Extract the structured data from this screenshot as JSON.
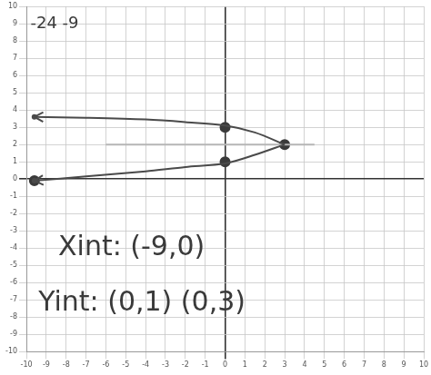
{
  "chart_data": {
    "type": "scatter",
    "annotations": [
      "-24 -9",
      "Xint: (-9,0)",
      "Yint: (0,1) (0,3)"
    ],
    "series": [
      {
        "color": "#4a4a4a",
        "marker": "arrow",
        "line_style": "solid",
        "x": [
          -9.6,
          -7,
          -4,
          -2,
          0,
          1.5,
          3
        ],
        "values": [
          3.6,
          3.55,
          3.45,
          3.3,
          3.1,
          2.7,
          2.0
        ]
      },
      {
        "color": "#4a4a4a",
        "marker": "arrow",
        "line_style": "solid",
        "x": [
          -9.6,
          -7,
          -4,
          -2,
          0,
          1.5,
          3
        ],
        "values": [
          -0.1,
          0.15,
          0.45,
          0.7,
          0.9,
          1.4,
          2.0
        ]
      },
      {
        "color": "#b5b5b5",
        "marker": "none",
        "line_style": "solid",
        "x": [
          -6,
          4.5
        ],
        "values": [
          2,
          2
        ]
      },
      {
        "color": "#3a3a3a",
        "marker": "circle",
        "line_style": "none",
        "x": [
          0,
          0,
          3,
          -9.6
        ],
        "values": [
          3,
          1,
          2,
          -0.1
        ]
      }
    ],
    "xlim": [
      -10,
      10
    ],
    "ylim": [
      -10,
      10
    ],
    "xticks": [
      -10,
      -9,
      -8,
      -7,
      -6,
      -5,
      -4,
      -3,
      -2,
      -1,
      0,
      1,
      2,
      3,
      4,
      5,
      6,
      7,
      8,
      9,
      10
    ],
    "yticks": [
      -10,
      -9,
      -8,
      -7,
      -6,
      -5,
      -4,
      -3,
      -2,
      -1,
      0,
      1,
      2,
      3,
      4,
      5,
      6,
      7,
      8,
      9,
      10
    ],
    "grid": true
  }
}
